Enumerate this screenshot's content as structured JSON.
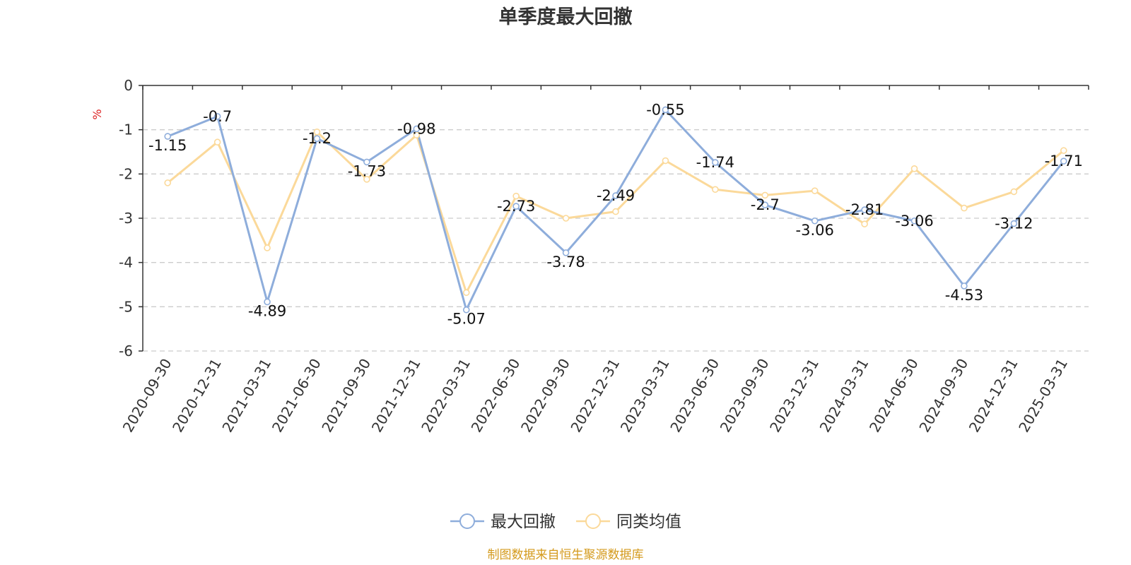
{
  "chart_data": {
    "type": "line",
    "title": "单季度最大回撤",
    "unit": "%",
    "ylim": [
      -6,
      0
    ],
    "yticks": [
      0,
      -1,
      -2,
      -3,
      -4,
      -5,
      -6
    ],
    "grid": "horizontal-dashed",
    "legend_position": "bottom-center",
    "categories": [
      "2020-09-30",
      "2020-12-31",
      "2021-03-31",
      "2021-06-30",
      "2021-09-30",
      "2021-12-31",
      "2022-03-31",
      "2022-06-30",
      "2022-09-30",
      "2022-12-31",
      "2023-03-31",
      "2023-06-30",
      "2023-09-30",
      "2023-12-31",
      "2024-03-31",
      "2024-06-30",
      "2024-09-30",
      "2024-12-31",
      "2025-03-31"
    ],
    "series": [
      {
        "name": "最大回撤",
        "color": "#8eaddb",
        "values": [
          -1.15,
          -0.7,
          -4.89,
          -1.2,
          -1.73,
          -0.98,
          -5.07,
          -2.73,
          -3.78,
          -2.49,
          -0.55,
          -1.74,
          -2.7,
          -3.06,
          -2.81,
          -3.06,
          -4.53,
          -3.12,
          -1.71
        ],
        "labels": [
          "-1.15",
          "-0.7",
          "-4.89",
          "-1.2",
          "-1.73",
          "-0.98",
          "-5.07",
          "-2.73",
          "-3.78",
          "-2.49",
          "-0.55",
          "-1.74",
          "-2.7",
          "-3.06",
          "-2.81",
          "-3.06",
          "-4.53",
          "-3.12",
          "-1.71"
        ]
      },
      {
        "name": "同类均值",
        "color": "#fbd99a",
        "values": [
          -2.2,
          -1.28,
          -3.67,
          -1.05,
          -2.12,
          -1.12,
          -4.68,
          -2.5,
          -3.0,
          -2.85,
          -1.7,
          -2.35,
          -2.48,
          -2.38,
          -3.13,
          -1.88,
          -2.77,
          -2.4,
          -1.47
        ]
      }
    ],
    "source": "制图数据来自恒生聚源数据库",
    "colors": {
      "axis": "#333333",
      "grid": "#cccccc",
      "unit": "#dd2222",
      "source": "#d49a1c"
    }
  }
}
